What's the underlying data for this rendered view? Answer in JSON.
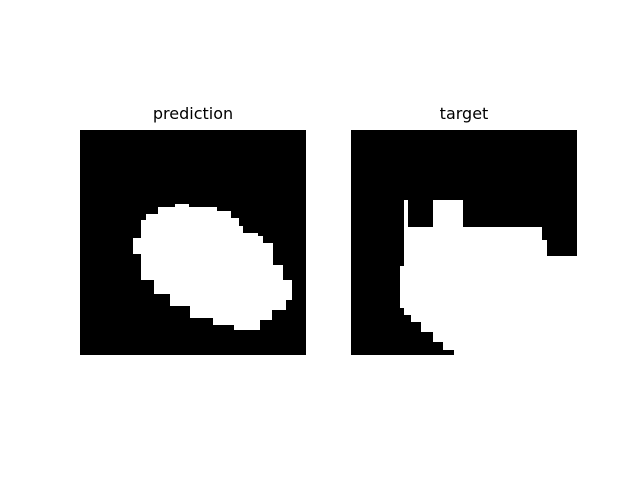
{
  "figure": {
    "panels": [
      {
        "title": "prediction"
      },
      {
        "title": "target"
      }
    ]
  },
  "colors": {
    "background": "#000000",
    "mask": "#ffffff",
    "page": "#ffffff"
  }
}
